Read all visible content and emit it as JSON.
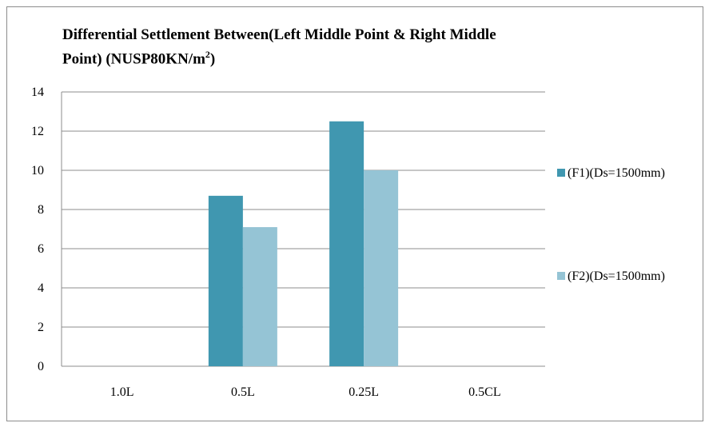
{
  "chart_data": {
    "type": "bar",
    "title_line1": "Differential Settlement Between(Left Middle Point & Right Middle",
    "title_line2_main": "Point) (NUSP80KN/m",
    "title_line2_sup": "2",
    "title_line2_end": ")",
    "categories": [
      "1.0L",
      "0.5L",
      "0.25L",
      "0.5CL"
    ],
    "series": [
      {
        "name": "(F1)(Ds=1500mm)",
        "values": [
          0,
          8.7,
          12.5,
          0
        ],
        "color": "#4097b0"
      },
      {
        "name": "(F2)(Ds=1500mm)",
        "values": [
          0,
          7.1,
          10.0,
          0
        ],
        "color": "#95c4d5"
      }
    ],
    "ylim": [
      0,
      14
    ],
    "yticks": [
      0,
      2,
      4,
      6,
      8,
      10,
      12,
      14
    ],
    "grid": true,
    "legend_position": "right"
  }
}
